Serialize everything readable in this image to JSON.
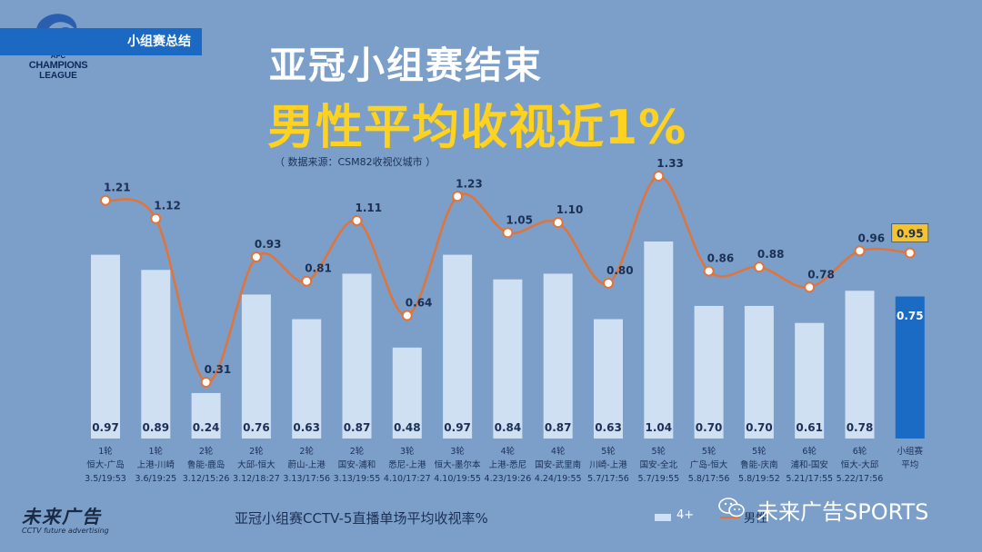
{
  "header": {
    "logo_text": {
      "afc": "AFC",
      "line1": "CHAMPIONS",
      "line2": "LEAGUE"
    },
    "section_tag": "小组赛总结",
    "title_main": "亚冠小组赛结束",
    "title_highlight": "男性平均收视近1%",
    "source": "（ 数据来源：CSM82收视仪城市 ）"
  },
  "footer": {
    "brand_left_cn": "未来广告",
    "brand_left_en": "CCTV future advertising",
    "caption": "亚冠小组赛CCTV-5直播单场平均收视率%",
    "legend_bar_label": "4+",
    "legend_line_label": "男性",
    "brand_right": "未来广告SPORTS"
  },
  "colors": {
    "background": "#7b9fc9",
    "bar": "#cfe0f3",
    "bar_highlight": "#1b6bc4",
    "line": "#e0743a",
    "title_highlight": "#ffd21f",
    "label_box": "#f4c430"
  },
  "chart_data": {
    "type": "bar",
    "categories": [
      [
        "1轮",
        "恒大-广岛",
        "3.5/19:53"
      ],
      [
        "1轮",
        "上港-川崎",
        "3.6/19:25"
      ],
      [
        "2轮",
        "鲁能-鹿岛",
        "3.12/15:26"
      ],
      [
        "2轮",
        "大邱-恒大",
        "3.12/18:27"
      ],
      [
        "2轮",
        "蔚山-上港",
        "3.13/17:56"
      ],
      [
        "2轮",
        "国安-浦和",
        "3.13/19:55"
      ],
      [
        "3轮",
        "悉尼-上港",
        "4.10/17:27"
      ],
      [
        "3轮",
        "恒大-墨尔本",
        "4.10/19:55"
      ],
      [
        "4轮",
        "上港-悉尼",
        "4.23/19:26"
      ],
      [
        "4轮",
        "国安-武里南",
        "4.24/19:55"
      ],
      [
        "5轮",
        "川崎-上港",
        "5.7/17:56"
      ],
      [
        "5轮",
        "国安-全北",
        "5.7/19:55"
      ],
      [
        "5轮",
        "广岛-恒大",
        "5.8/17:56"
      ],
      [
        "5轮",
        "鲁能-庆南",
        "5.8/19:52"
      ],
      [
        "6轮",
        "浦和-国安",
        "5.21/17:55"
      ],
      [
        "6轮",
        "恒大-大邱",
        "5.22/17:56"
      ],
      [
        "小组赛",
        "平均"
      ]
    ],
    "series": [
      {
        "name": "4+",
        "type": "bar",
        "values": [
          0.97,
          0.89,
          0.24,
          0.76,
          0.63,
          0.87,
          0.48,
          0.97,
          0.84,
          0.87,
          0.63,
          1.04,
          0.7,
          0.7,
          0.61,
          0.78,
          0.75
        ],
        "labels": [
          "0.97",
          "0.89",
          "0.24",
          "0.76",
          "0.63",
          "0.87",
          "0.48",
          "0.97",
          "0.84",
          "0.87",
          "0.63",
          "1.04",
          "0.70",
          "0.70",
          "0.61",
          "0.78",
          "0.75"
        ]
      },
      {
        "name": "男性",
        "type": "line",
        "values": [
          1.21,
          1.12,
          0.31,
          0.93,
          0.81,
          1.11,
          0.64,
          1.23,
          1.05,
          1.1,
          0.8,
          1.33,
          0.86,
          0.88,
          0.78,
          0.96,
          0.95
        ],
        "labels": [
          "1.21",
          "1.12",
          "0.31",
          "0.93",
          "0.81",
          "1.11",
          "0.64",
          "1.23",
          "1.05",
          "1.10",
          "0.80",
          "1.33",
          "0.86",
          "0.88",
          "0.78",
          "0.96",
          "0.95"
        ]
      }
    ],
    "highlight_category_index": 16,
    "grid": false,
    "legend_position": "bottom"
  }
}
